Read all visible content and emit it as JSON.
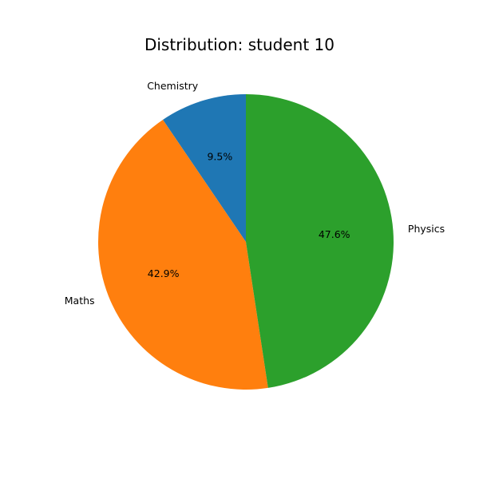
{
  "chart_data": {
    "type": "pie",
    "title": "Distribution: student 10",
    "labels": [
      "Chemistry",
      "Maths",
      "Physics"
    ],
    "values": [
      9.5,
      42.9,
      47.6
    ],
    "percent_labels": [
      "9.5%",
      "42.9%",
      "47.6%"
    ],
    "colors": [
      "#1f77b4",
      "#ff7f0e",
      "#2ca02c"
    ],
    "start_angle_deg": 90,
    "direction": "counterclockwise"
  }
}
